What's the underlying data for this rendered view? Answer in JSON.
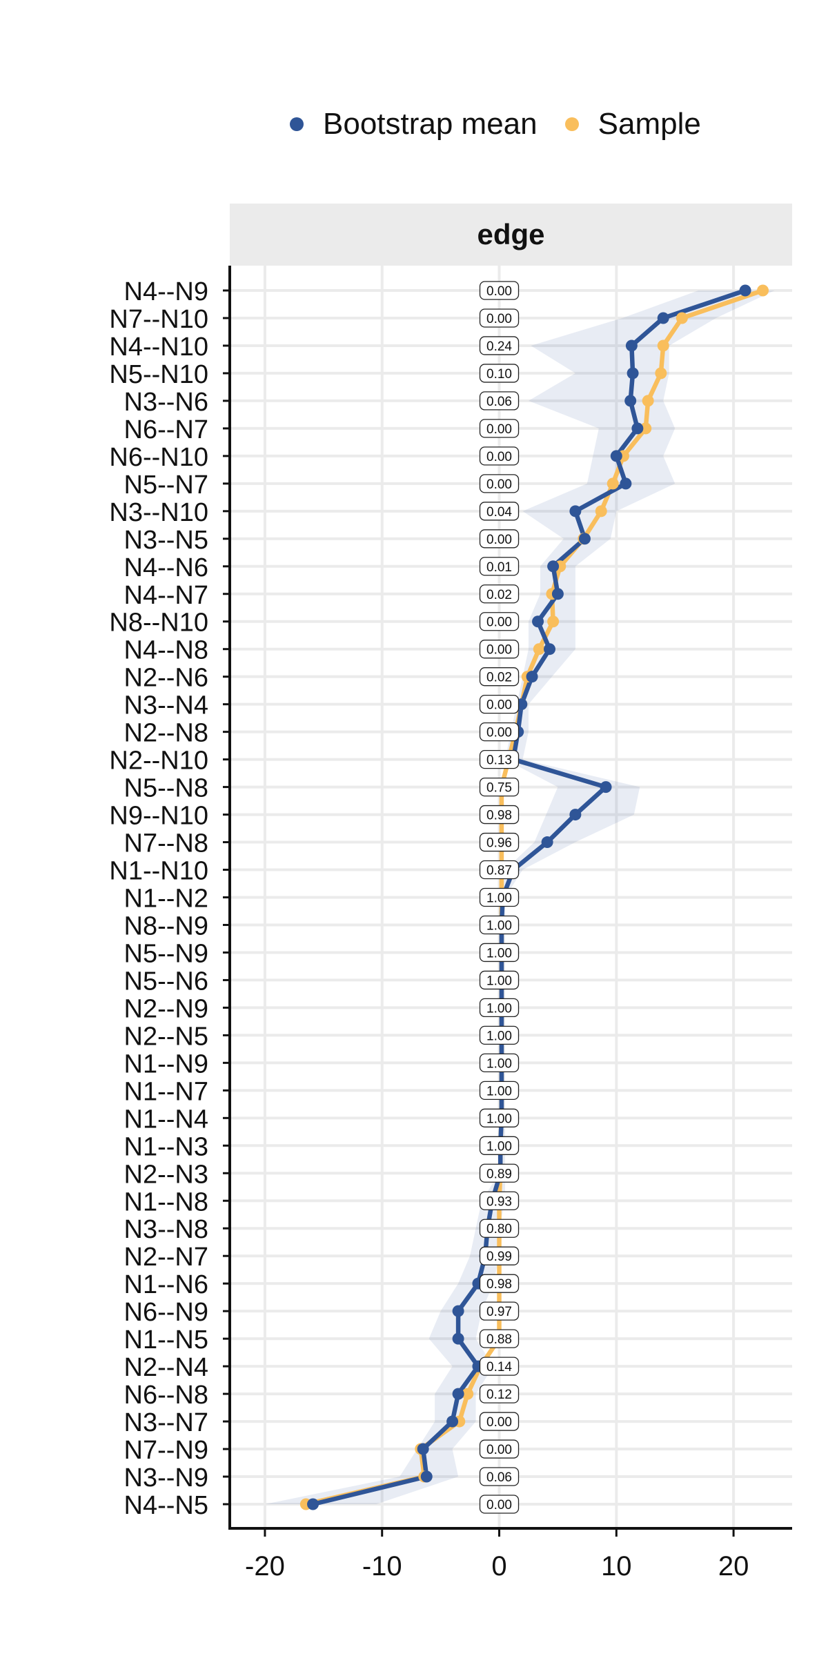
{
  "legend": {
    "items": [
      {
        "label": "Bootstrap mean",
        "color": "#2f5597"
      },
      {
        "label": "Sample",
        "color": "#f9be5c"
      }
    ]
  },
  "facet": {
    "label": "edge"
  },
  "chart_data": {
    "type": "line",
    "orientation": "horizontal",
    "facet": "edge",
    "categories": [
      "N4--N9",
      "N7--N10",
      "N4--N10",
      "N5--N10",
      "N3--N6",
      "N6--N7",
      "N6--N10",
      "N5--N7",
      "N3--N10",
      "N3--N5",
      "N4--N6",
      "N4--N7",
      "N8--N10",
      "N4--N8",
      "N2--N6",
      "N3--N4",
      "N2--N8",
      "N2--N10",
      "N5--N8",
      "N9--N10",
      "N7--N8",
      "N1--N10",
      "N1--N2",
      "N8--N9",
      "N5--N9",
      "N5--N6",
      "N2--N9",
      "N2--N5",
      "N1--N9",
      "N1--N7",
      "N1--N4",
      "N1--N3",
      "N2--N3",
      "N1--N8",
      "N3--N8",
      "N2--N7",
      "N1--N6",
      "N6--N9",
      "N1--N5",
      "N2--N4",
      "N6--N8",
      "N3--N7",
      "N7--N9",
      "N3--N9",
      "N4--N5"
    ],
    "series": [
      {
        "name": "Bootstrap mean",
        "color": "#2f5597",
        "values": [
          21.0,
          14.0,
          11.3,
          11.4,
          11.2,
          11.8,
          10.0,
          10.8,
          6.5,
          7.3,
          4.6,
          5.0,
          3.3,
          4.3,
          2.8,
          1.9,
          1.6,
          1.2,
          9.1,
          6.5,
          4.1,
          1.2,
          0.3,
          0.2,
          0.2,
          0.2,
          0.2,
          0.2,
          0.2,
          0.2,
          0.2,
          0.1,
          0.1,
          -0.6,
          -1.0,
          -1.2,
          -1.8,
          -3.5,
          -3.5,
          -1.8,
          -3.5,
          -4.0,
          -6.5,
          -6.2,
          -15.9
        ]
      },
      {
        "name": "Sample",
        "color": "#f9be5c",
        "values": [
          22.5,
          15.6,
          14.0,
          13.8,
          12.7,
          12.5,
          10.6,
          9.7,
          8.7,
          7.2,
          5.2,
          4.5,
          4.6,
          3.4,
          2.4,
          1.9,
          1.4,
          0.8,
          0.2,
          0.2,
          0.2,
          0.2,
          0.2,
          0.2,
          0.2,
          0.2,
          0.2,
          0.2,
          0.2,
          0.2,
          0.2,
          0.1,
          0.1,
          0.0,
          0.0,
          0.0,
          0.0,
          0.0,
          0.0,
          -1.6,
          -2.7,
          -3.4,
          -6.7,
          -6.4,
          -16.5
        ]
      }
    ],
    "ci_band": {
      "lower": [
        17.0,
        10.5,
        2.7,
        6.5,
        2.5,
        8.5,
        8.0,
        7.5,
        2.0,
        5.5,
        3.5,
        3.5,
        2.5,
        2.5,
        2.0,
        1.5,
        1.0,
        0.5,
        5.0,
        4.0,
        3.0,
        0.5,
        0.0,
        0.0,
        0.0,
        0.0,
        0.0,
        0.0,
        0.0,
        0.0,
        0.0,
        0.0,
        0.0,
        -1.5,
        -2.0,
        -2.5,
        -3.5,
        -5.0,
        -6.0,
        -4.0,
        -5.5,
        -5.5,
        -7.0,
        -8.5,
        -20.0
      ],
      "upper": [
        23.5,
        18.5,
        14.5,
        14.5,
        14.0,
        15.0,
        14.0,
        15.0,
        10.0,
        9.5,
        6.5,
        6.5,
        6.5,
        6.5,
        4.5,
        2.5,
        2.5,
        2.0,
        12.0,
        11.5,
        6.5,
        2.0,
        0.5,
        0.5,
        0.5,
        0.5,
        0.5,
        0.5,
        0.5,
        0.5,
        0.5,
        0.5,
        0.5,
        0.5,
        0.0,
        0.0,
        -0.5,
        -1.5,
        -2.0,
        -0.5,
        -2.0,
        -2.0,
        -4.0,
        -3.5,
        -10.5
      ]
    },
    "labels": [
      "0.00",
      "0.00",
      "0.24",
      "0.10",
      "0.06",
      "0.00",
      "0.00",
      "0.00",
      "0.04",
      "0.00",
      "0.01",
      "0.02",
      "0.00",
      "0.00",
      "0.02",
      "0.00",
      "0.00",
      "0.13",
      "0.75",
      "0.98",
      "0.96",
      "0.87",
      "1.00",
      "1.00",
      "1.00",
      "1.00",
      "1.00",
      "1.00",
      "1.00",
      "1.00",
      "1.00",
      "1.00",
      "0.89",
      "0.93",
      "0.80",
      "0.99",
      "0.98",
      "0.97",
      "0.88",
      "0.14",
      "0.12",
      "0.00",
      "0.00",
      "0.06",
      "0.00"
    ],
    "xlim": [
      -23,
      25
    ],
    "xticks": [
      -20,
      -10,
      0,
      10,
      20
    ],
    "xtick_labels": [
      "-20",
      "-10",
      "0",
      "10",
      "20"
    ],
    "grid": true,
    "legend_position": "top"
  }
}
